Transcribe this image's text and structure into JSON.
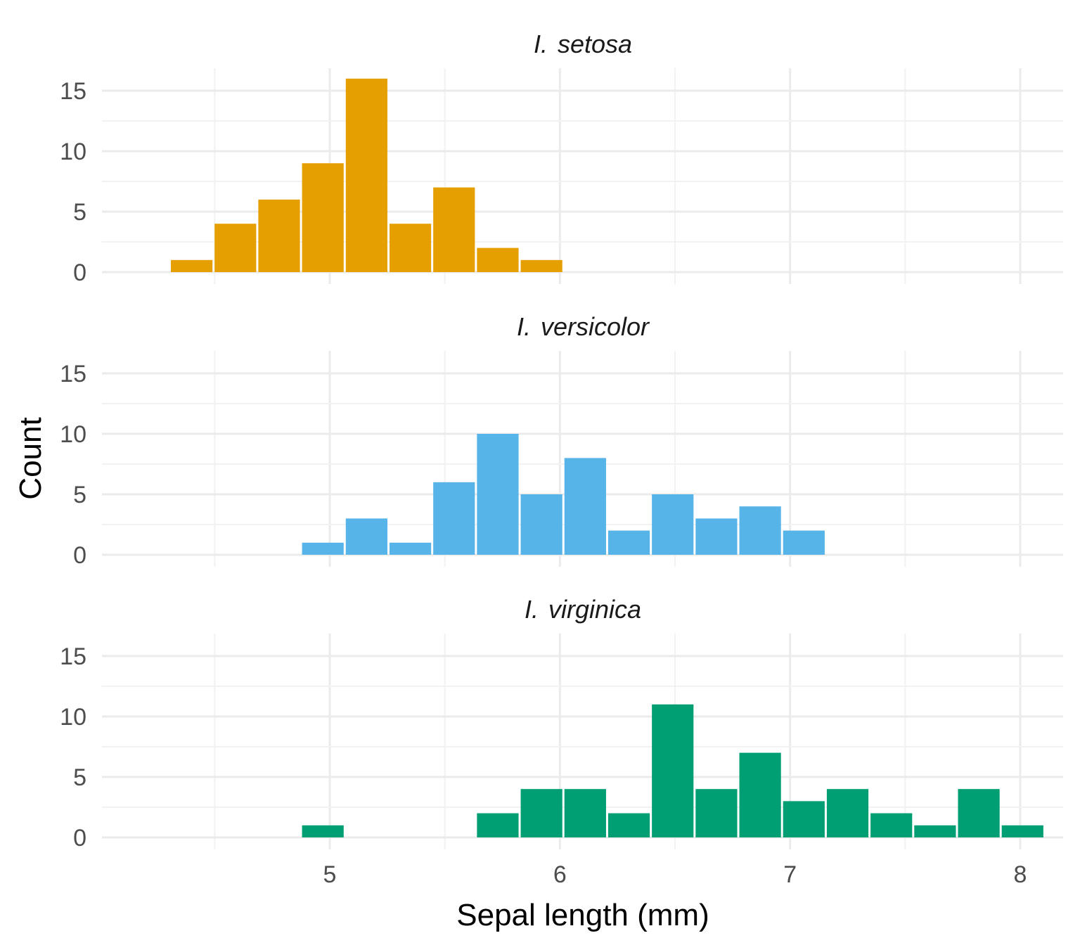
{
  "chart_data": {
    "type": "bar",
    "subtype": "faceted-histogram",
    "xlabel": "Sepal length (mm)",
    "ylabel": "Count",
    "xlim": [
      4.2,
      8.2
    ],
    "ylim": [
      0,
      17
    ],
    "x_ticks": [
      5,
      6,
      7,
      8
    ],
    "y_ticks": [
      0,
      5,
      10,
      15
    ],
    "bin_width": 0.19,
    "grid": true,
    "legend": "none",
    "facets": [
      {
        "genus": "I.",
        "species": "setosa",
        "color": "#E69F00",
        "bins": [
          {
            "x": 4.4,
            "count": 1
          },
          {
            "x": 4.59,
            "count": 4
          },
          {
            "x": 4.78,
            "count": 6
          },
          {
            "x": 4.97,
            "count": 9
          },
          {
            "x": 5.16,
            "count": 16
          },
          {
            "x": 5.35,
            "count": 4
          },
          {
            "x": 5.54,
            "count": 7
          },
          {
            "x": 5.73,
            "count": 2
          },
          {
            "x": 5.92,
            "count": 1
          }
        ]
      },
      {
        "genus": "I.",
        "species": "versicolor",
        "color": "#56B4E9",
        "bins": [
          {
            "x": 4.97,
            "count": 1
          },
          {
            "x": 5.16,
            "count": 3
          },
          {
            "x": 5.35,
            "count": 1
          },
          {
            "x": 5.54,
            "count": 6
          },
          {
            "x": 5.73,
            "count": 10
          },
          {
            "x": 5.92,
            "count": 5
          },
          {
            "x": 6.11,
            "count": 8
          },
          {
            "x": 6.3,
            "count": 2
          },
          {
            "x": 6.49,
            "count": 5
          },
          {
            "x": 6.68,
            "count": 3
          },
          {
            "x": 6.87,
            "count": 4
          },
          {
            "x": 7.06,
            "count": 2
          }
        ]
      },
      {
        "genus": "I.",
        "species": "virginica",
        "color": "#009E73",
        "bins": [
          {
            "x": 4.97,
            "count": 1
          },
          {
            "x": 5.73,
            "count": 2
          },
          {
            "x": 5.92,
            "count": 4
          },
          {
            "x": 6.11,
            "count": 4
          },
          {
            "x": 6.3,
            "count": 2
          },
          {
            "x": 6.49,
            "count": 11
          },
          {
            "x": 6.68,
            "count": 4
          },
          {
            "x": 6.87,
            "count": 7
          },
          {
            "x": 7.06,
            "count": 3
          },
          {
            "x": 7.25,
            "count": 4
          },
          {
            "x": 7.44,
            "count": 2
          },
          {
            "x": 7.63,
            "count": 1
          },
          {
            "x": 7.82,
            "count": 4
          },
          {
            "x": 8.01,
            "count": 1
          }
        ]
      }
    ]
  }
}
